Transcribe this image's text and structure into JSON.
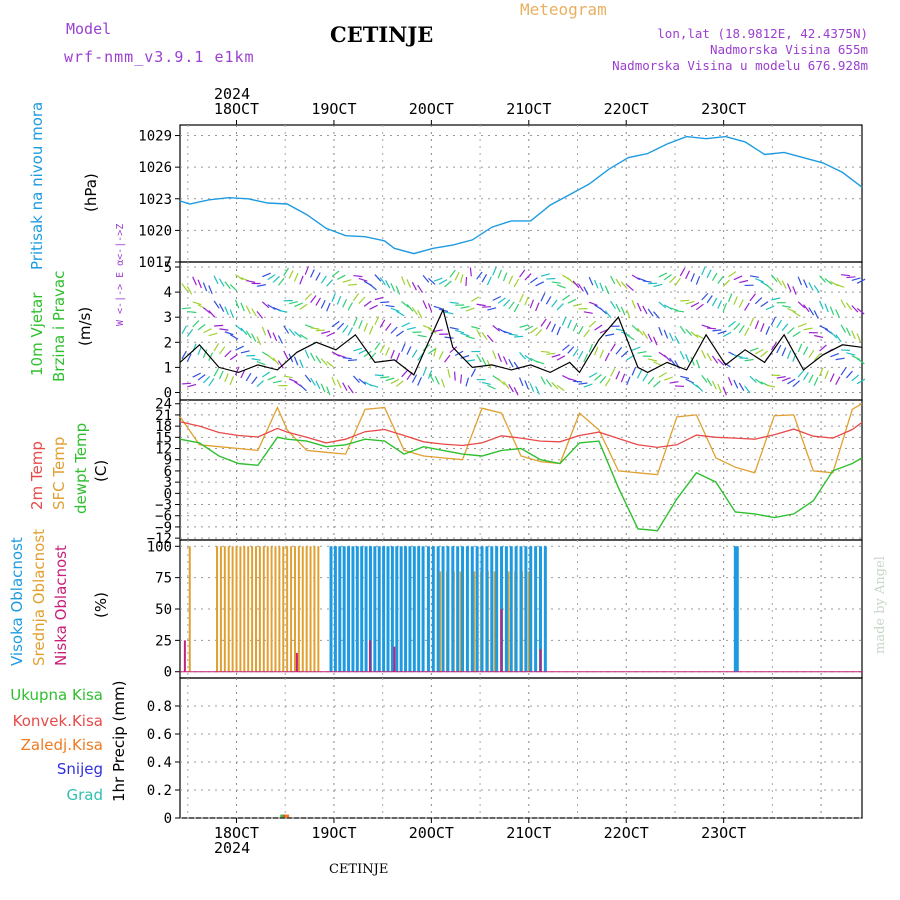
{
  "header": {
    "model_label": "Model",
    "model_name": "wrf-nmm_v3.9.1 e1km",
    "station": "CETINJE",
    "meteogram_label": "Meteogram",
    "coords": "lon,lat (18.9812E, 42.4375N)",
    "altitude": "Nadmorska Visina 655m",
    "model_altitude": "Nadmorska Visina u modelu 676.928m",
    "footer_station": "CETINJE",
    "credit": "made by Angel"
  },
  "colors": {
    "pressure": "#1e9be0",
    "wind_label": "#2fbf2f",
    "temp2m": "#e84a4a",
    "sfc_temp": "#e0a030",
    "dewpt": "#2fbf2f",
    "high_cloud": "#1e9be0",
    "mid_cloud": "#e0a030",
    "low_cloud": "#c8207a",
    "header_purple": "#9b3fd0",
    "header_orange": "#e8b060",
    "precip_total": "#2fbf2f",
    "precip_conv": "#e84a4a",
    "precip_frz": "#f07a20",
    "snow": "#3030e0",
    "graupel": "#30c0b0"
  },
  "time_axis": {
    "top_year": "2024",
    "bottom_year": "2024",
    "ticks": [
      "18OCT",
      "19OCT",
      "20OCT",
      "21OCT",
      "22OCT",
      "23OCT"
    ]
  },
  "panels": {
    "pressure": {
      "ylabel_name": "Pritisak na nivou mora",
      "unit": "(hPa)",
      "ticks": [
        1017,
        1020,
        1023,
        1026,
        1029
      ]
    },
    "wind": {
      "ylabel_lines": [
        "10m Vjetar",
        "Brzina i Pravac"
      ],
      "unit": "(m/s)",
      "ticks": [
        0,
        1,
        2,
        3,
        4,
        5
      ],
      "compass_label": "W <-|-> E  α<-|->Z"
    },
    "temperature": {
      "labels": [
        "2m Temp",
        "SFC Temp",
        "dewpt Temp"
      ],
      "unit": "(C)",
      "ticks": [
        -12,
        -9,
        -6,
        -3,
        0,
        3,
        6,
        9,
        12,
        15,
        18,
        21,
        24
      ]
    },
    "cloud": {
      "labels": [
        "Visoka Oblacnost",
        "Srednja Oblacnost",
        "Niska Oblacnost"
      ],
      "unit": "(%)",
      "ticks": [
        0,
        25,
        50,
        75,
        100
      ]
    },
    "precip": {
      "legend": [
        "Ukupna Kisa",
        "Konvek.Kisa",
        "Zaledj.Kisa",
        "Snijeg",
        "Grad"
      ],
      "ylabel": "1hr Precip (mm)",
      "ticks": [
        0,
        0.2,
        0.4,
        0.6,
        0.8
      ]
    }
  },
  "chart_data": [
    {
      "type": "line",
      "title": "",
      "ylabel": "Pritisak na nivou mora (hPa)",
      "x_units": "days since 17 Oct 2024 00:00",
      "ylim": [
        1017,
        1030
      ],
      "series": [
        {
          "name": "Pritisak na nivou mora",
          "x": [
            0.0,
            0.1,
            0.3,
            0.5,
            0.7,
            0.9,
            1.1,
            1.3,
            1.5,
            1.7,
            1.9,
            2.1,
            2.2,
            2.4,
            2.6,
            2.8,
            3.0,
            3.2,
            3.4,
            3.6,
            3.8,
            4.0,
            4.2,
            4.4,
            4.6,
            4.8,
            5.0,
            5.2,
            5.4,
            5.6,
            5.8,
            6.0,
            6.2,
            6.4,
            6.6,
            6.8,
            7.0
          ],
          "values": [
            1022.8,
            1022.5,
            1022.9,
            1023.1,
            1023.0,
            1022.6,
            1022.5,
            1021.5,
            1020.2,
            1019.5,
            1019.4,
            1019.0,
            1018.3,
            1017.8,
            1018.3,
            1018.6,
            1019.1,
            1020.3,
            1020.9,
            1020.9,
            1022.4,
            1023.4,
            1024.4,
            1025.8,
            1026.9,
            1027.3,
            1028.2,
            1028.9,
            1028.7,
            1028.9,
            1028.4,
            1027.2,
            1027.4,
            1026.9,
            1026.4,
            1025.5,
            1024.1
          ]
        }
      ]
    },
    {
      "type": "line",
      "ylabel": "10m Vjetar Brzina i Pravac (m/s)",
      "x_units": "days since 17 Oct 2024 00:00",
      "ylim": [
        0,
        5
      ],
      "series": [
        {
          "name": "10m Vjetar",
          "x": [
            0.0,
            0.2,
            0.4,
            0.6,
            0.8,
            1.0,
            1.2,
            1.4,
            1.6,
            1.8,
            2.0,
            2.2,
            2.4,
            2.55,
            2.7,
            2.8,
            3.0,
            3.2,
            3.4,
            3.6,
            3.8,
            4.0,
            4.1,
            4.3,
            4.5,
            4.7,
            4.8,
            5.0,
            5.2,
            5.4,
            5.6,
            5.8,
            6.0,
            6.2,
            6.4,
            6.6,
            6.8,
            7.0
          ],
          "values": [
            1.2,
            1.9,
            1.0,
            0.8,
            1.1,
            0.9,
            1.6,
            2.0,
            1.7,
            2.3,
            1.2,
            1.3,
            0.7,
            2.0,
            3.3,
            1.8,
            1.0,
            1.1,
            0.9,
            1.1,
            0.8,
            1.2,
            0.8,
            2.1,
            3.0,
            1.0,
            0.8,
            1.2,
            0.9,
            2.3,
            1.1,
            1.7,
            1.2,
            2.3,
            0.9,
            1.5,
            1.9,
            1.8
          ]
        }
      ]
    },
    {
      "type": "line",
      "ylabel": "Temp (C)",
      "x_units": "days since 17 Oct 2024 00:00",
      "ylim": [
        -12,
        25
      ],
      "series": [
        {
          "name": "2m Temp",
          "x": [
            0.0,
            0.2,
            0.4,
            0.6,
            0.8,
            1.0,
            1.1,
            1.3,
            1.5,
            1.7,
            1.9,
            2.1,
            2.3,
            2.5,
            2.7,
            2.9,
            3.1,
            3.3,
            3.5,
            3.7,
            3.9,
            4.1,
            4.3,
            4.5,
            4.7,
            4.9,
            5.1,
            5.3,
            5.5,
            5.7,
            5.9,
            6.1,
            6.3,
            6.5,
            6.7,
            6.9,
            7.0
          ],
          "values": [
            19.2,
            18.0,
            16.3,
            15.5,
            15.1,
            17.4,
            16.4,
            15.0,
            13.5,
            14.5,
            16.5,
            17.1,
            15.5,
            13.8,
            13.2,
            12.8,
            13.5,
            15.4,
            14.8,
            14.0,
            13.8,
            15.5,
            16.4,
            14.7,
            13.0,
            12.3,
            13.0,
            15.6,
            15.0,
            14.8,
            14.5,
            15.7,
            17.2,
            15.3,
            14.8,
            17.1,
            19.0
          ]
        },
        {
          "name": "SFC Temp",
          "x": [
            0.0,
            0.2,
            0.4,
            0.6,
            0.8,
            1.0,
            1.1,
            1.3,
            1.5,
            1.7,
            1.9,
            2.1,
            2.3,
            2.5,
            2.7,
            2.9,
            3.1,
            3.3,
            3.5,
            3.7,
            3.9,
            4.1,
            4.3,
            4.5,
            4.7,
            4.9,
            5.1,
            5.3,
            5.5,
            5.7,
            5.9,
            6.1,
            6.3,
            6.5,
            6.7,
            6.9,
            7.0
          ],
          "values": [
            20.5,
            13.0,
            12.5,
            12.0,
            11.5,
            23.0,
            17.0,
            11.5,
            11.0,
            10.5,
            22.5,
            23.0,
            11.5,
            10.0,
            9.5,
            9.0,
            22.8,
            21.5,
            10.0,
            8.5,
            8.0,
            21.5,
            17.0,
            6.0,
            5.5,
            5.0,
            20.5,
            21.0,
            9.5,
            7.0,
            5.5,
            20.8,
            21.0,
            6.0,
            5.5,
            22.5,
            24.0
          ]
        },
        {
          "name": "dewpt Temp",
          "x": [
            0.0,
            0.2,
            0.4,
            0.6,
            0.8,
            1.0,
            1.1,
            1.3,
            1.5,
            1.7,
            1.9,
            2.1,
            2.3,
            2.5,
            2.7,
            2.9,
            3.1,
            3.3,
            3.5,
            3.7,
            3.9,
            4.1,
            4.3,
            4.5,
            4.7,
            4.9,
            5.1,
            5.3,
            5.5,
            5.7,
            5.9,
            6.1,
            6.3,
            6.5,
            6.7,
            6.9,
            7.0
          ],
          "values": [
            14.5,
            13.5,
            10.0,
            8.0,
            7.5,
            15.0,
            14.5,
            14.0,
            12.5,
            13.0,
            14.5,
            14.0,
            10.5,
            12.5,
            11.5,
            10.5,
            10.0,
            11.5,
            12.0,
            9.0,
            8.0,
            13.5,
            14.0,
            1.5,
            -9.5,
            -10.0,
            -1.5,
            5.5,
            3.0,
            -5.0,
            -5.5,
            -6.5,
            -5.5,
            -2.0,
            6.0,
            8.0,
            9.5
          ]
        }
      ]
    },
    {
      "type": "bar",
      "ylabel": "Oblacnost (%)",
      "x_units": "days since 17 Oct 2024 00:00",
      "ylim": [
        0,
        100
      ],
      "series": [
        {
          "name": "Visoka Oblacnost",
          "segments": [
            {
              "from": 1.55,
              "to": 2.5,
              "value": 100,
              "step": 0.045
            },
            {
              "from": 2.55,
              "to": 3.75,
              "value": 100,
              "step": 0.05
            },
            {
              "from": 5.7,
              "to": 5.72,
              "value": 100,
              "step": 0.02
            }
          ]
        },
        {
          "name": "Srednja Oblacnost",
          "segments": [
            {
              "from": 0.1,
              "to": 0.1,
              "value": 100,
              "step": 0.02
            },
            {
              "from": 0.38,
              "to": 1.45,
              "value": 100,
              "step": 0.04
            },
            {
              "from": 2.6,
              "to": 3.6,
              "value": 80,
              "step": 0.07
            }
          ]
        },
        {
          "name": "Niska Oblacnost",
          "points": [
            [
              0.05,
              25
            ],
            [
              1.2,
              15
            ],
            [
              1.95,
              25
            ],
            [
              2.2,
              20
            ],
            [
              3.3,
              50
            ],
            [
              3.7,
              18
            ]
          ]
        }
      ]
    },
    {
      "type": "bar",
      "ylabel": "1hr Precip (mm)",
      "x_units": "days since 17 Oct 2024 00:00",
      "ylim": [
        0,
        1
      ],
      "series": [
        {
          "name": "Ukupna Kisa",
          "points": [
            [
              1.05,
              0.01
            ]
          ]
        },
        {
          "name": "Konvek.Kisa",
          "points": [
            [
              1.08,
              0.01
            ]
          ]
        },
        {
          "name": "Zaledj.Kisa",
          "points": [
            [
              1.1,
              0.01
            ]
          ]
        },
        {
          "name": "Snijeg",
          "points": []
        },
        {
          "name": "Grad",
          "points": []
        }
      ]
    }
  ]
}
